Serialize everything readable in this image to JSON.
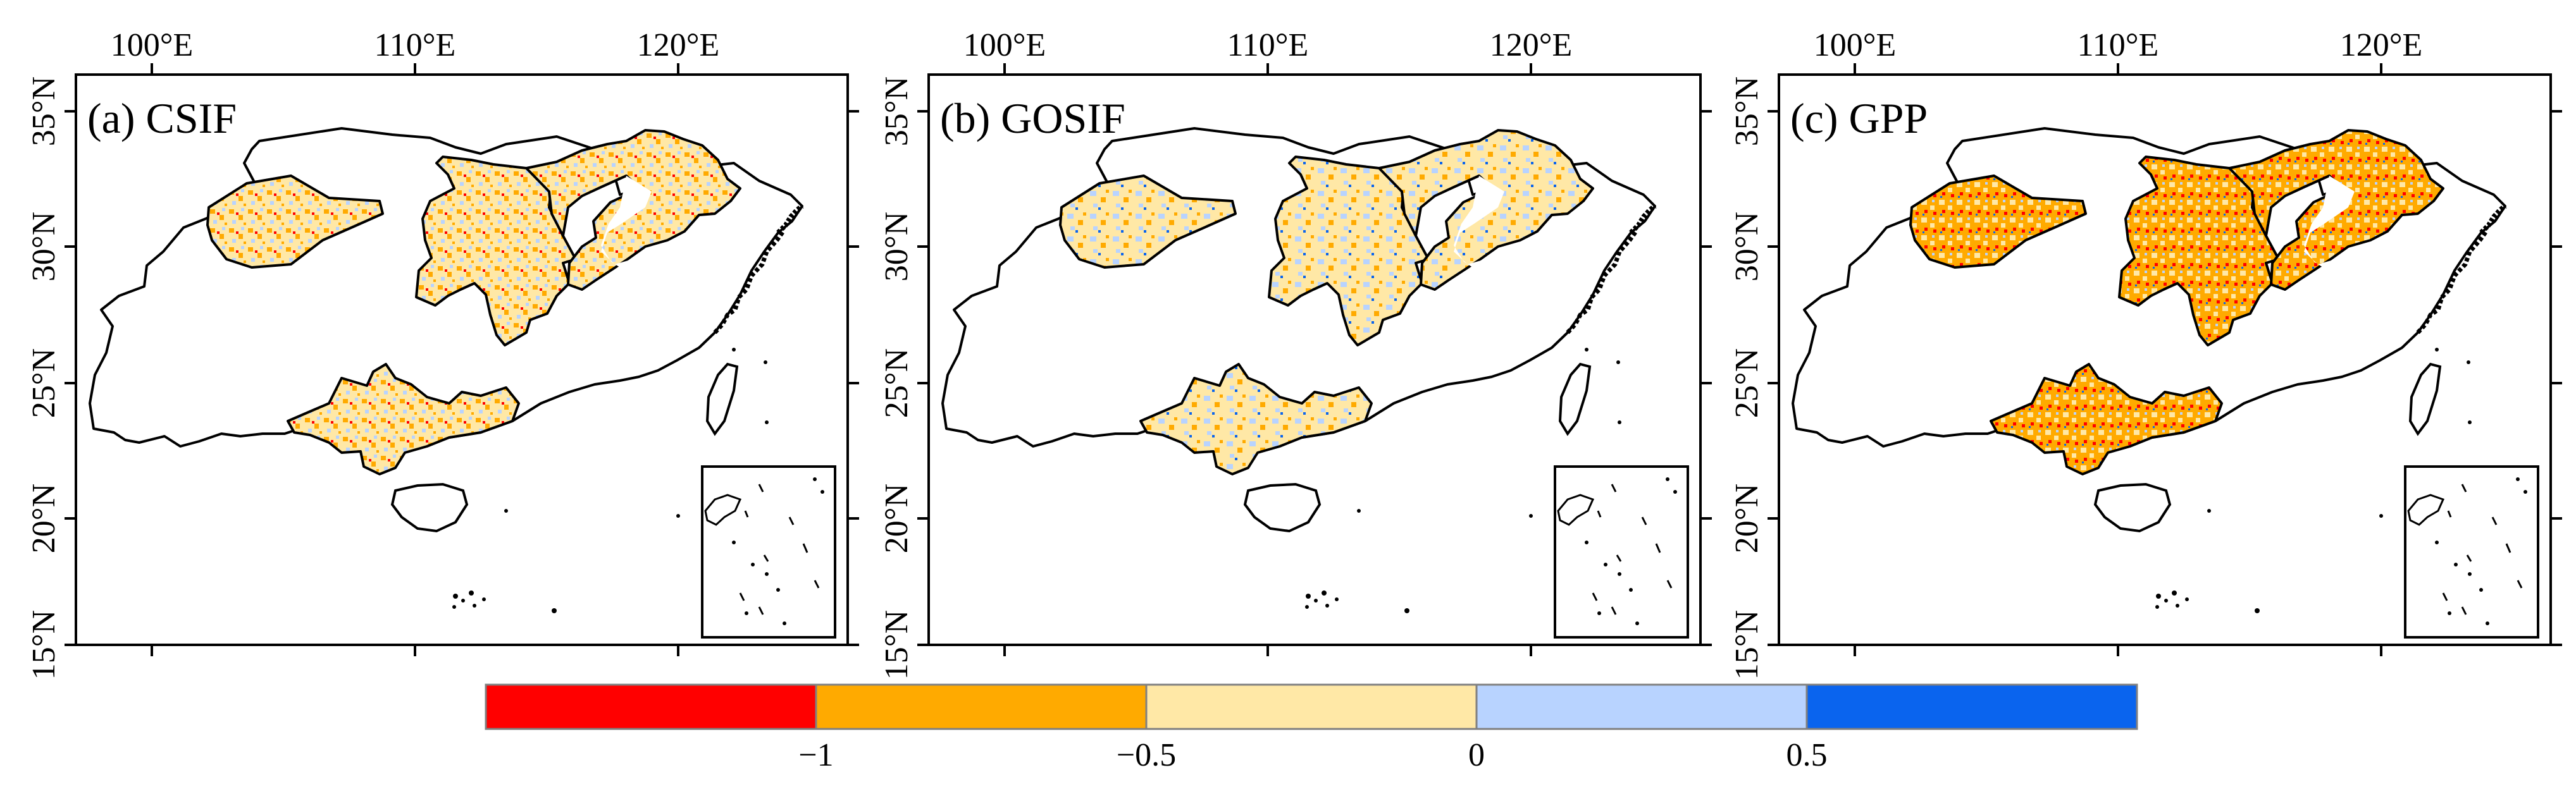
{
  "panels": [
    {
      "id": "a",
      "title": "(a) CSIF"
    },
    {
      "id": "b",
      "title": "(b) GOSIF"
    },
    {
      "id": "c",
      "title": "(c) GPP"
    }
  ],
  "axes": {
    "lon_ticks": [
      "100°E",
      "110°E",
      "120°E"
    ],
    "lat_ticks": [
      "35°N",
      "30°N",
      "25°N",
      "20°N",
      "15°N"
    ]
  },
  "colorbar": {
    "bins": [
      {
        "color": "#ff0000"
      },
      {
        "color": "#ffaa00"
      },
      {
        "color": "#ffe8a6"
      },
      {
        "color": "#b8d3ff"
      },
      {
        "color": "#0a64ee"
      }
    ],
    "tick_labels": [
      "−1",
      "−0.5",
      "0",
      "0.5"
    ]
  },
  "colors": {
    "outline": "#000000",
    "background": "#ffffff",
    "dominant_fill": "#ffe8a6",
    "secondary_fill": "#ffaa00"
  }
}
